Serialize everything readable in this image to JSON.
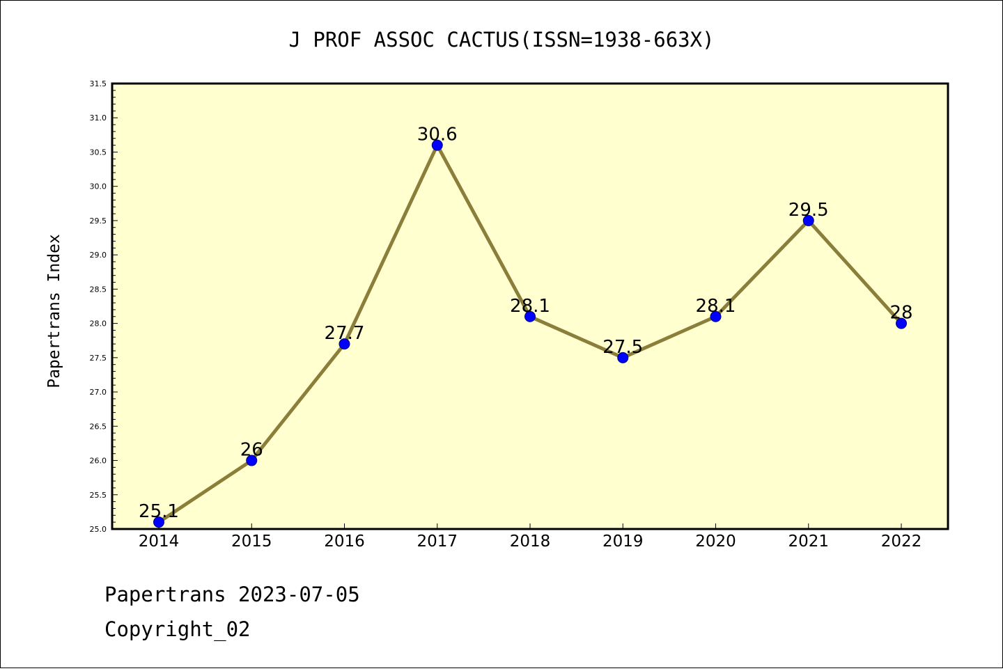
{
  "colors": {
    "plot_background": "#ffffd0",
    "line": "#8a7e3a",
    "marker": "#0000ff",
    "marker_edge": "#000080"
  },
  "chart_data": {
    "type": "line",
    "title": "J PROF ASSOC CACTUS(ISSN=1938-663X)",
    "xlabel": "",
    "ylabel": "Papertrans Index",
    "categories": [
      "2014",
      "2015",
      "2016",
      "2017",
      "2018",
      "2019",
      "2020",
      "2021",
      "2022"
    ],
    "series": [
      {
        "values": [
          25.1,
          26,
          27.7,
          30.6,
          28.1,
          27.5,
          28.1,
          29.5,
          28
        ]
      }
    ],
    "data_labels": [
      "25.1",
      "26",
      "27.7",
      "30.6",
      "28.1",
      "27.5",
      "28.1",
      "29.5",
      "28"
    ],
    "ylim": [
      25.0,
      31.5
    ],
    "yticks": [
      "25.0",
      "25.5",
      "26.0",
      "26.5",
      "27.0",
      "27.5",
      "28.0",
      "28.5",
      "29.0",
      "29.5",
      "30.0",
      "30.5",
      "31.0",
      "31.5"
    ],
    "grid": false,
    "legend": "none"
  },
  "footer": {
    "line1": "Papertrans 2023-07-05",
    "line2": "Copyright_02"
  }
}
